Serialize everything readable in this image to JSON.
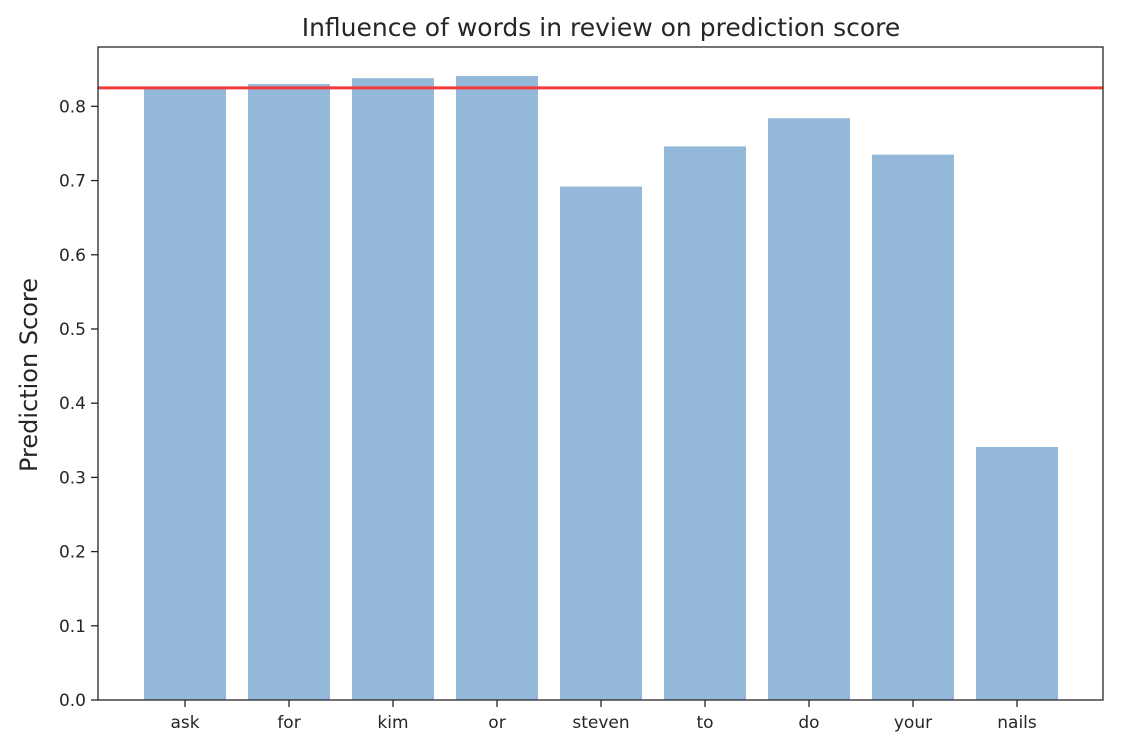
{
  "chart_data": {
    "type": "bar",
    "title": "Influence of words in review on prediction score",
    "xlabel": "",
    "ylabel": "Prediction Score",
    "categories": [
      "ask",
      "for",
      "kim",
      "or",
      "steven",
      "to",
      "do",
      "your",
      "nails"
    ],
    "values": [
      0.825,
      0.83,
      0.838,
      0.841,
      0.692,
      0.746,
      0.784,
      0.735,
      0.341
    ],
    "ylim": [
      0,
      0.88
    ],
    "yticks": [
      0.0,
      0.1,
      0.2,
      0.3,
      0.4,
      0.5,
      0.6,
      0.7,
      0.8
    ],
    "ytick_labels": [
      "0.0",
      "0.1",
      "0.2",
      "0.3",
      "0.4",
      "0.5",
      "0.6",
      "0.7",
      "0.8"
    ],
    "reference_line": 0.825,
    "grid": false,
    "colors": {
      "bar": "#93b8d9",
      "reference_line": "#f23a3a",
      "axis": "#262626"
    }
  }
}
